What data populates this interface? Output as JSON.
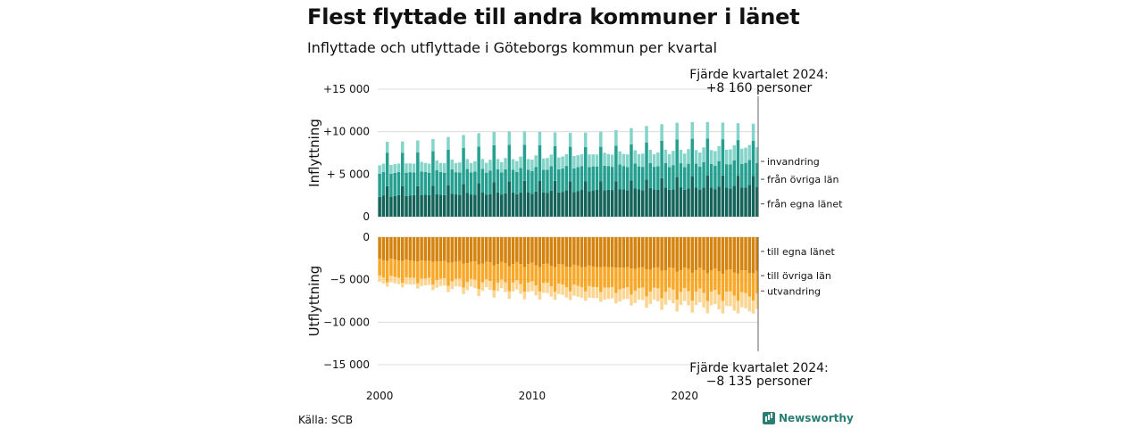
{
  "title": "Flest flyttade till andra kommuner i länet",
  "subtitle": "Inflyttade och utflyttade i Göteborgs kommun per kvartal",
  "source": "Källa: SCB",
  "brand": {
    "name": "Newsworthy",
    "icon": "newsworthy-logo-icon"
  },
  "chart_data": [
    {
      "type": "bar",
      "stacked": true,
      "ylabel": "Inflyttning",
      "ylim": [
        0,
        15000
      ],
      "yticks": [
        0,
        5000,
        10000,
        15000
      ],
      "ytick_labels": [
        "0",
        "+ 5 000",
        "+10 000",
        "+15 000"
      ],
      "x_start": 2000,
      "x_end": 2024.75,
      "xticks": [
        2000,
        2010,
        2020
      ],
      "series": [
        {
          "name": "från egna länet",
          "color": "#15645b",
          "peak": 3600,
          "base": 2400,
          "growth": 1200
        },
        {
          "name": "från övriga län",
          "color": "#25a090",
          "peak": 4100,
          "base": 2700,
          "growth": 200
        },
        {
          "name": "invandring",
          "color": "#84d4c9",
          "peak": 1300,
          "base": 1000,
          "growth": 800
        }
      ],
      "annotation": {
        "line1": "Fjärde kvartalet 2024:",
        "line2": "+8 160 personer"
      }
    },
    {
      "type": "bar",
      "stacked": true,
      "ylabel": "Utflyttning",
      "ylim": [
        -15000,
        0
      ],
      "yticks": [
        0,
        -5000,
        -10000,
        -15000
      ],
      "ytick_labels": [
        "0",
        "−5 000",
        "−10 000",
        "−15 000"
      ],
      "x_start": 2000,
      "x_end": 2024.75,
      "xticks": [
        2000,
        2010,
        2020
      ],
      "series": [
        {
          "name": "till egna länet",
          "color": "#d4830f",
          "peak": 2800,
          "base": 2600,
          "growth": 1500
        },
        {
          "name": "till övriga län",
          "color": "#f8a829",
          "peak": 2600,
          "base": 2000,
          "growth": 700
        },
        {
          "name": "utvandring",
          "color": "#fbd592",
          "peak": 500,
          "base": 700,
          "growth": 1100
        }
      ],
      "annotation": {
        "line1": "Fjärde kvartalet 2024:",
        "line2": "−8 135 personer"
      }
    }
  ]
}
